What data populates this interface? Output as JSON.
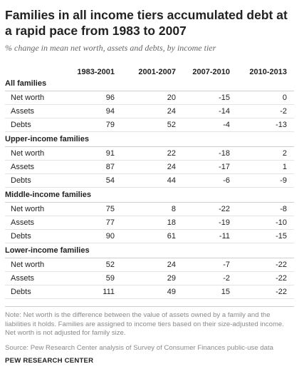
{
  "title": "Families in all income tiers accumulated debt at a rapid pace from 1983 to 2007",
  "subtitle": "% change in mean net worth, assets and debts, by income tier",
  "columns": [
    "1983-2001",
    "2001-2007",
    "2007-2010",
    "2010-2013"
  ],
  "groups": [
    {
      "label": "All families",
      "rows": [
        {
          "label": "Net worth",
          "values": [
            "96",
            "20",
            "-15",
            "0"
          ]
        },
        {
          "label": "Assets",
          "values": [
            "94",
            "24",
            "-14",
            "-2"
          ]
        },
        {
          "label": "Debts",
          "values": [
            "79",
            "52",
            "-4",
            "-13"
          ]
        }
      ]
    },
    {
      "label": "Upper-income families",
      "rows": [
        {
          "label": "Net worth",
          "values": [
            "91",
            "22",
            "-18",
            "2"
          ]
        },
        {
          "label": "Assets",
          "values": [
            "87",
            "24",
            "-17",
            "1"
          ]
        },
        {
          "label": "Debts",
          "values": [
            "54",
            "44",
            "-6",
            "-9"
          ]
        }
      ]
    },
    {
      "label": "Middle-income families",
      "rows": [
        {
          "label": "Net worth",
          "values": [
            "75",
            "8",
            "-22",
            "-8"
          ]
        },
        {
          "label": "Assets",
          "values": [
            "77",
            "18",
            "-19",
            "-10"
          ]
        },
        {
          "label": "Debts",
          "values": [
            "90",
            "61",
            "-11",
            "-15"
          ]
        }
      ]
    },
    {
      "label": "Lower-income families",
      "rows": [
        {
          "label": "Net worth",
          "values": [
            "52",
            "24",
            "-7",
            "-22"
          ]
        },
        {
          "label": "Assets",
          "values": [
            "59",
            "29",
            "-2",
            "-22"
          ]
        },
        {
          "label": "Debts",
          "values": [
            "111",
            "49",
            "15",
            "-22"
          ]
        }
      ]
    }
  ],
  "note": "Note: Net worth is the difference between the value of assets owned by a family and the liabilities it holds. Families are assigned to income tiers based on their size-adjusted income. Net worth is not adjusted for family size.",
  "source": "Source: Pew Research Center analysis of Survey of Consumer Finances public-use data",
  "brand": "PEW RESEARCH CENTER"
}
